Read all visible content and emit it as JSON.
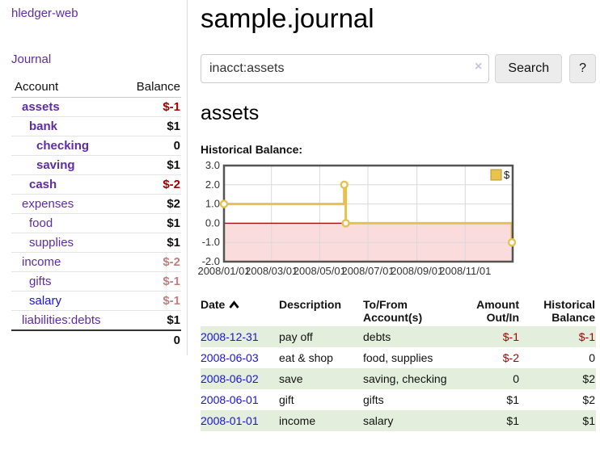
{
  "app": {
    "brand": "hledger-web"
  },
  "theme": {
    "link_purple": "#5e2ca5",
    "link_blue": "#1a12d6",
    "negative_strong": "#a40000",
    "negative_soft": "#c08080",
    "row_stripe_green": "#e3efdc"
  },
  "sidebar": {
    "journal_link": "Journal",
    "accounts": {
      "header": {
        "account": "Account",
        "balance": "Balance"
      },
      "rows": [
        {
          "name": "assets",
          "level": 1,
          "emph": true,
          "balance": "$-1",
          "bclass": "neg"
        },
        {
          "name": "bank",
          "level": 2,
          "emph": true,
          "balance": "$1",
          "bclass": "pos"
        },
        {
          "name": "checking",
          "level": 3,
          "emph": true,
          "balance": "0",
          "bclass": "pos"
        },
        {
          "name": "saving",
          "level": 3,
          "emph": true,
          "balance": "$1",
          "bclass": "pos"
        },
        {
          "name": "cash",
          "level": 2,
          "emph": true,
          "balance": "$-2",
          "bclass": "neg"
        },
        {
          "name": "expenses",
          "level": 1,
          "emph": false,
          "balance": "$2",
          "bclass": "pos"
        },
        {
          "name": "food",
          "level": 2,
          "emph": false,
          "balance": "$1",
          "bclass": "pos"
        },
        {
          "name": "supplies",
          "level": 2,
          "emph": false,
          "balance": "$1",
          "bclass": "pos"
        },
        {
          "name": "income",
          "level": 1,
          "emph": false,
          "balance": "$-2",
          "bclass": "neg-soft"
        },
        {
          "name": "gifts",
          "level": 2,
          "emph": false,
          "balance": "$-1",
          "bclass": "neg-soft"
        },
        {
          "name": "salary",
          "level": 2,
          "emph": false,
          "balance": "$-1",
          "bclass": "neg-soft",
          "link": "fresh"
        },
        {
          "name": "liabilities:debts",
          "level": 1,
          "emph": false,
          "balance": "$1",
          "bclass": "pos"
        }
      ],
      "total": "0"
    }
  },
  "main": {
    "title": "sample.journal",
    "search": {
      "value": "inacct:assets",
      "clear_label": "×",
      "button": "Search",
      "help": "?"
    },
    "account_heading": "assets",
    "section_label": "Historical Balance:"
  },
  "chart_data": {
    "type": "line",
    "step": true,
    "title": "Historical Balance",
    "legend_label": "$",
    "x_days": 365,
    "ylim": [
      -2,
      3
    ],
    "points": [
      {
        "day": 0,
        "value": 1,
        "date": "2008-01-01"
      },
      {
        "day": 152,
        "value": 2,
        "date": "2008-06-01"
      },
      {
        "day": 154,
        "value": 0,
        "date": "2008-06-03"
      },
      {
        "day": 364,
        "value": -1,
        "date": "2008-12-31"
      }
    ],
    "xticks": [
      {
        "day": 0,
        "label": "2008/01/01"
      },
      {
        "day": 60,
        "label": "2008/03/01"
      },
      {
        "day": 121,
        "label": "2008/05/01"
      },
      {
        "day": 182,
        "label": "2008/07/01"
      },
      {
        "day": 244,
        "label": "2008/09/01"
      },
      {
        "day": 305,
        "label": "2008/11/01"
      }
    ],
    "yticks": [
      {
        "value": 3,
        "label": "3.0"
      },
      {
        "value": 2,
        "label": "2.0"
      },
      {
        "value": 1,
        "label": "1.0"
      },
      {
        "value": 0,
        "label": "0.0"
      },
      {
        "value": -1,
        "label": "-1.0"
      },
      {
        "value": -2,
        "label": "-2.0"
      }
    ],
    "colors": {
      "line": "#e6c150",
      "marker_fill": "#ffffff",
      "negative_region": "#fbdcdc",
      "zero_line": "#991111",
      "grid": "#d9d9d9",
      "border": "#545454",
      "legend_swatch": "#e8c34e",
      "legend_swatch_border": "#b8962e"
    }
  },
  "register": {
    "columns": [
      "Date",
      "Description",
      "To/From Account(s)",
      "Amount Out/In",
      "Historical Balance"
    ],
    "rows": [
      {
        "date": "2008-12-31",
        "description": "pay off",
        "accounts": "debts",
        "amount": "$-1",
        "amount_class": "neg",
        "balance": "$-1",
        "balance_class": "neg"
      },
      {
        "date": "2008-06-03",
        "description": "eat & shop",
        "accounts": "food, supplies",
        "amount": "$-2",
        "amount_class": "neg",
        "balance": "0",
        "balance_class": "pos"
      },
      {
        "date": "2008-06-02",
        "description": "save",
        "accounts": "saving, checking",
        "amount": "0",
        "amount_class": "pos",
        "balance": "$2",
        "balance_class": "pos"
      },
      {
        "date": "2008-06-01",
        "description": "gift",
        "accounts": "gifts",
        "amount": "$1",
        "amount_class": "pos",
        "balance": "$2",
        "balance_class": "pos"
      },
      {
        "date": "2008-01-01",
        "description": "income",
        "accounts": "salary",
        "amount": "$1",
        "amount_class": "pos",
        "balance": "$1",
        "balance_class": "pos"
      }
    ]
  }
}
